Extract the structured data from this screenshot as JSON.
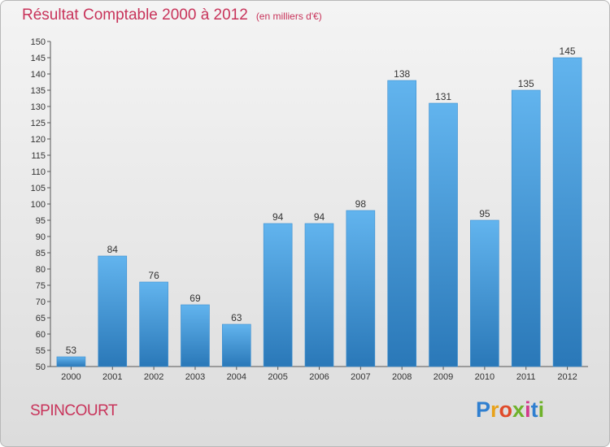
{
  "title": "Résultat Comptable 2000 à 2012",
  "unit_note": "(en milliers d'€)",
  "commune": "SPINCOURT",
  "logo": {
    "letters": [
      "P",
      "r",
      "o",
      "x",
      "i",
      "t",
      "i"
    ],
    "colors": [
      "#2f7fd0",
      "#e8a21a",
      "#e04b2a",
      "#6fb22b",
      "#d33a8c",
      "#2f7fd0",
      "#6fb22b"
    ]
  },
  "colors": {
    "bar_top": "#62b4ee",
    "bar_bottom": "#2a78b8",
    "title": "#c8335a"
  },
  "chart_data": {
    "type": "bar",
    "categories": [
      "2000",
      "2001",
      "2002",
      "2003",
      "2004",
      "2005",
      "2006",
      "2007",
      "2008",
      "2009",
      "2010",
      "2011",
      "2012"
    ],
    "values": [
      53,
      84,
      76,
      69,
      63,
      94,
      94,
      98,
      138,
      131,
      95,
      135,
      145
    ],
    "title": "Résultat Comptable 2000 à 2012",
    "xlabel": "",
    "ylabel": "",
    "ylim": [
      50,
      150
    ],
    "yticks": [
      50,
      55,
      60,
      65,
      70,
      75,
      80,
      85,
      90,
      95,
      100,
      105,
      110,
      115,
      120,
      125,
      130,
      135,
      140,
      145,
      150
    ],
    "grid": false,
    "legend": "none"
  }
}
